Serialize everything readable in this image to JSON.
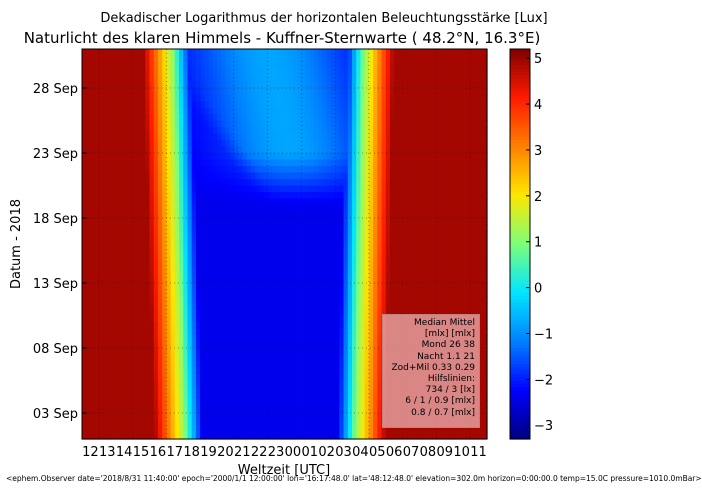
{
  "chart_data": {
    "type": "heatmap",
    "title": "Dekadischer Logarithmus der horizontalen Beleuchtungsstärke [Lux]",
    "subtitle": "Naturlicht des klaren Himmels - Kuffner-Sternwarte ( 48.2°N, 16.3°E)",
    "xlabel": "Weltzeit [UTC]",
    "ylabel": "Datum - 2018",
    "x_ticks": [
      "12",
      "13",
      "14",
      "15",
      "16",
      "17",
      "18",
      "19",
      "20",
      "21",
      "22",
      "23",
      "00",
      "01",
      "02",
      "03",
      "04",
      "05",
      "06",
      "07",
      "08",
      "09",
      "10",
      "11"
    ],
    "x_range_hours": [
      12,
      36
    ],
    "y_ticks": [
      "03 Sep",
      "08 Sep",
      "13 Sep",
      "18 Sep",
      "23 Sep",
      "28 Sep"
    ],
    "y_tick_day": [
      3,
      8,
      13,
      18,
      23,
      28
    ],
    "y_range_day": [
      1,
      31
    ],
    "colorbar": {
      "ticks": [
        "5",
        "4",
        "3",
        "2",
        "1",
        "0",
        "−1",
        "−2",
        "−3"
      ],
      "tick_values": [
        5,
        4,
        3,
        2,
        1,
        0,
        -1,
        -2,
        -3
      ],
      "range": [
        -3.3,
        5.2
      ]
    },
    "colormap": [
      "#000080",
      "#0000ff",
      "#0080ff",
      "#00e5ff",
      "#7dff7a",
      "#ffe600",
      "#ff8000",
      "#ff1a00",
      "#800000"
    ],
    "grid": true,
    "model": {
      "sunset_hour_start": 18.1,
      "sunset_hour_end": 17.4,
      "sunrise_hour_start": 28.2,
      "sunrise_hour_end": 28.7,
      "day_level": 4.9,
      "twilight_depth": -2.4,
      "moon_peak_level": -0.6
    }
  },
  "legend": {
    "lines": [
      "Median Mittel",
      "[mlx]  [mlx]",
      "Mond   26  38",
      "Nacht 1.1  21",
      "Zod+Mil 0.33  0.29",
      "Hilfslinien:",
      "734 / 3  [lx]",
      "6 /  1 / 0.9 [mlx]",
      "0.8 / 0.7 [mlx]"
    ]
  },
  "footer": "<ephem.Observer date='2018/8/31 11:40:00' epoch='2000/1/1 12:00:00' lon='16:17:48.0' lat='48:12:48.0' elevation=302.0m horizon=0:00:00.0 temp=15.0C pressure=1010.0mBar>"
}
